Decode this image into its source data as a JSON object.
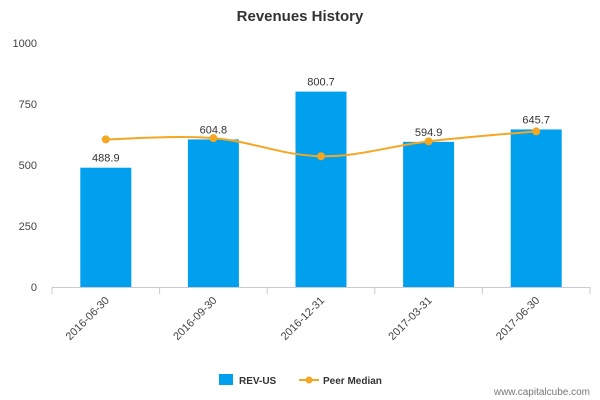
{
  "chart_data": {
    "type": "bar",
    "title": "Revenues History",
    "xlabel": "",
    "ylabel": "",
    "categories": [
      "2016-06-30",
      "2016-09-30",
      "2016-12-31",
      "2017-03-31",
      "2017-06-30"
    ],
    "series": [
      {
        "name": "REV-US",
        "type": "bar",
        "color": "#00a0ee",
        "values": [
          488.9,
          604.8,
          800.7,
          594.9,
          645.7
        ],
        "labels": [
          "488.9",
          "604.8",
          "800.7",
          "594.9",
          "645.7"
        ]
      },
      {
        "name": "Peer Median",
        "type": "line",
        "color": "#f5a623",
        "values": [
          605,
          610,
          536,
          597,
          638
        ]
      }
    ],
    "ylim": [
      0,
      1000
    ],
    "yticks": [
      "0",
      "250",
      "500",
      "750",
      "1000"
    ],
    "grid": false,
    "legend": "bottom-center"
  },
  "watermark": "www.capitalcube.com"
}
